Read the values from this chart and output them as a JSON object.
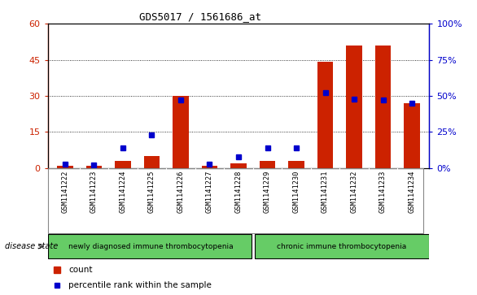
{
  "title": "GDS5017 / 1561686_at",
  "samples": [
    "GSM1141222",
    "GSM1141223",
    "GSM1141224",
    "GSM1141225",
    "GSM1141226",
    "GSM1141227",
    "GSM1141228",
    "GSM1141229",
    "GSM1141230",
    "GSM1141231",
    "GSM1141232",
    "GSM1141233",
    "GSM1141234"
  ],
  "count": [
    1,
    1,
    3,
    5,
    30,
    1,
    2,
    3,
    3,
    44,
    51,
    51,
    27
  ],
  "percentile_pct": [
    3,
    2,
    14,
    23,
    47,
    3,
    8,
    14,
    14,
    52,
    48,
    47,
    45
  ],
  "bar_color": "#cc2200",
  "dot_color": "#0000cc",
  "left_ylim": [
    0,
    60
  ],
  "right_ylim": [
    0,
    100
  ],
  "left_yticks": [
    0,
    15,
    30,
    45,
    60
  ],
  "right_yticks": [
    0,
    25,
    50,
    75,
    100
  ],
  "group1_label": "newly diagnosed immune thrombocytopenia",
  "group2_label": "chronic immune thrombocytopenia",
  "group1_count": 7,
  "group2_count": 6,
  "disease_state_label": "disease state",
  "legend_count": "count",
  "legend_percentile": "percentile rank within the sample",
  "bar_width": 0.55,
  "xlabel_bg": "#c8c8c8",
  "group_bg": "#66cc66",
  "left_label_color": "#cc2200",
  "right_label_color": "#0000cc"
}
